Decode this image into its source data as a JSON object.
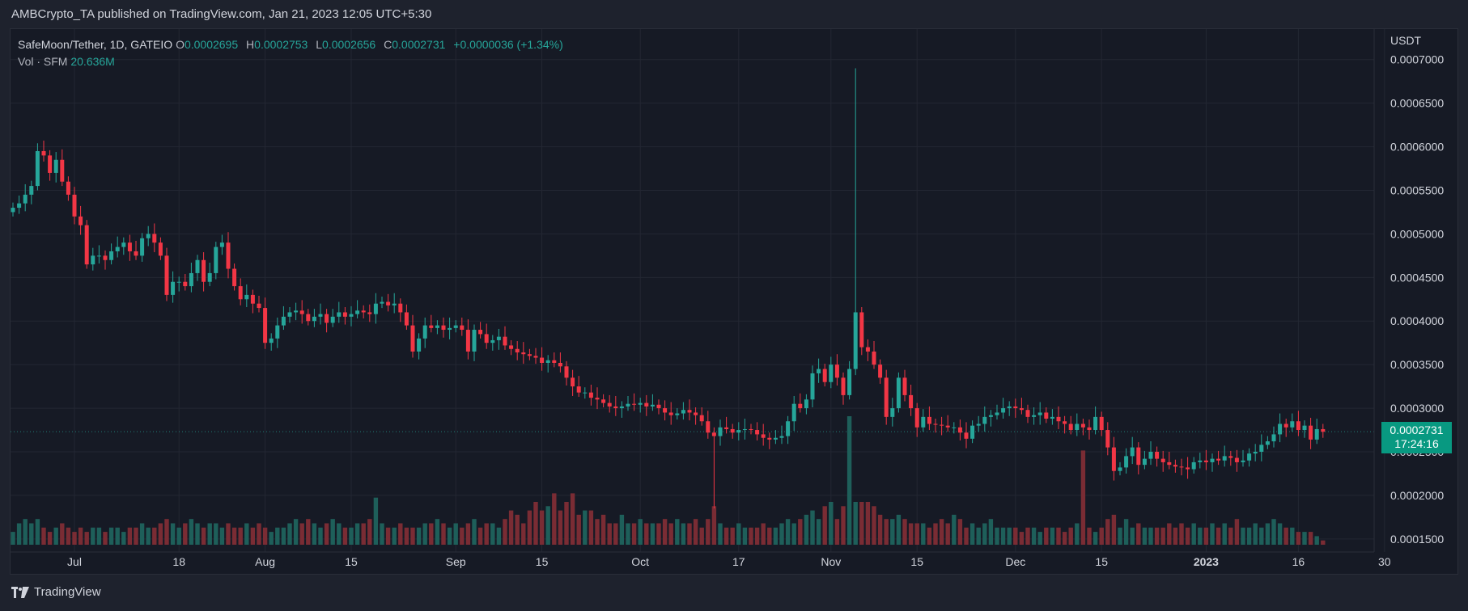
{
  "header": {
    "published": "AMBCrypto_TA published on TradingView.com, Jan 21, 2023 12:05 UTC+5:30"
  },
  "legend": {
    "symbol": "SafeMoon/Tether, 1D, GATEIO",
    "o_label": "O",
    "o_value": "0.0002695",
    "h_label": "H",
    "h_value": "0.0002753",
    "l_label": "L",
    "l_value": "0.0002656",
    "c_label": "C",
    "c_value": "0.0002731",
    "change": "+0.0000036 (+1.34%)",
    "vol_label": "Vol · SFM",
    "vol_value": "20.636M"
  },
  "price_axis": {
    "unit": "USDT"
  },
  "last_price": {
    "value": "0.0002731",
    "countdown": "17:24:16"
  },
  "footer": {
    "brand": "TradingView"
  },
  "colors": {
    "up": "#26a69a",
    "down": "#f23645",
    "vol_up": "#1e5f5a",
    "vol_down": "#7a2c34",
    "grid": "#232733",
    "text": "#d1d4dc"
  },
  "chart_data": {
    "type": "candlestick",
    "title": "SafeMoon/Tether, 1D, GATEIO",
    "ylabel": "USDT",
    "ylim": [
      0.000135,
      0.000735
    ],
    "y_ticks": [
      "0.0007000",
      "0.0006500",
      "0.0006000",
      "0.0005500",
      "0.0005000",
      "0.0004500",
      "0.0004000",
      "0.0003500",
      "0.0003000",
      "0.0002500",
      "0.0002000",
      "0.0001500"
    ],
    "x_ticks": [
      {
        "label": "Jul",
        "date": "2022-07-01"
      },
      {
        "label": "18",
        "date": "2022-07-18"
      },
      {
        "label": "Aug",
        "date": "2022-08-01"
      },
      {
        "label": "15",
        "date": "2022-08-15"
      },
      {
        "label": "Sep",
        "date": "2022-09-01"
      },
      {
        "label": "15",
        "date": "2022-09-15"
      },
      {
        "label": "Oct",
        "date": "2022-10-01"
      },
      {
        "label": "17",
        "date": "2022-10-17"
      },
      {
        "label": "Nov",
        "date": "2022-11-01"
      },
      {
        "label": "15",
        "date": "2022-11-15"
      },
      {
        "label": "Dec",
        "date": "2022-12-01"
      },
      {
        "label": "15",
        "date": "2022-12-15"
      },
      {
        "label": "2023",
        "date": "2023-01-01"
      },
      {
        "label": "16",
        "date": "2023-01-16"
      },
      {
        "label": "30",
        "date": "2023-01-30"
      }
    ],
    "start_date": "2022-06-21",
    "close": [
      0.00053,
      0.000535,
      0.000545,
      0.000555,
      0.000595,
      0.00059,
      0.00057,
      0.000585,
      0.00056,
      0.000545,
      0.00052,
      0.00051,
      0.000465,
      0.000475,
      0.000475,
      0.00047,
      0.00048,
      0.000485,
      0.00049,
      0.00048,
      0.000475,
      0.000495,
      0.0005,
      0.00049,
      0.000475,
      0.00043,
      0.000445,
      0.000445,
      0.00044,
      0.000455,
      0.00047,
      0.000445,
      0.000455,
      0.000485,
      0.00049,
      0.00046,
      0.00044,
      0.000425,
      0.00043,
      0.00042,
      0.000415,
      0.000375,
      0.00038,
      0.000395,
      0.000405,
      0.00041,
      0.000412,
      0.000408,
      0.0004,
      0.000405,
      0.000408,
      0.000398,
      0.000405,
      0.00041,
      0.000405,
      0.000408,
      0.000412,
      0.00041,
      0.000408,
      0.00042,
      0.000422,
      0.000418,
      0.00042,
      0.00041,
      0.000395,
      0.000365,
      0.00038,
      0.000395,
      0.000392,
      0.000395,
      0.00039,
      0.000392,
      0.000395,
      0.00039,
      0.000365,
      0.00039,
      0.000385,
      0.000375,
      0.000378,
      0.000382,
      0.000372,
      0.000368,
      0.000364,
      0.000362,
      0.00036,
      0.000358,
      0.000352,
      0.000355,
      0.000352,
      0.000348,
      0.000335,
      0.000325,
      0.000318,
      0.000318,
      0.000312,
      0.00031,
      0.000306,
      0.000302,
      0.0003,
      0.000302,
      0.000305,
      0.000304,
      0.000306,
      0.000302,
      0.000304,
      0.0003,
      0.000295,
      0.000292,
      0.000294,
      0.000298,
      0.000295,
      0.000292,
      0.000285,
      0.000272,
      0.000268,
      0.000278,
      0.000276,
      0.000272,
      0.000275,
      0.000276,
      0.000275,
      0.00027,
      0.000266,
      0.000264,
      0.000266,
      0.000268,
      0.000285,
      0.000305,
      0.0003,
      0.00031,
      0.00034,
      0.000345,
      0.00033,
      0.00035,
      0.000335,
      0.000315,
      0.000345,
      0.00041,
      0.00037,
      0.000365,
      0.00035,
      0.000335,
      0.00029,
      0.0003,
      0.000335,
      0.000315,
      0.0003,
      0.000278,
      0.00029,
      0.000282,
      0.000281,
      0.00028,
      0.000278,
      0.000278,
      0.000272,
      0.000265,
      0.00028,
      0.000282,
      0.00029,
      0.000292,
      0.000295,
      0.0003,
      0.000302,
      0.0003,
      0.000298,
      0.00029,
      0.000292,
      0.000295,
      0.000288,
      0.00029,
      0.000285,
      0.000282,
      0.000275,
      0.000282,
      0.000278,
      0.000275,
      0.00029,
      0.000275,
      0.000255,
      0.000228,
      0.000232,
      0.000245,
      0.000255,
      0.000235,
      0.000242,
      0.00025,
      0.000242,
      0.000238,
      0.000235,
      0.000233,
      0.000232,
      0.00023,
      0.000238,
      0.00024,
      0.000238,
      0.000242,
      0.00024,
      0.000245,
      0.000243,
      0.000238,
      0.00024,
      0.000248,
      0.00025,
      0.000258,
      0.000262,
      0.00027,
      0.000282,
      0.000278,
      0.000285,
      0.000275,
      0.00028,
      0.000264,
      0.000276,
      0.000273
    ],
    "volume_shown_by_bar_height": [
      3,
      5,
      6,
      5,
      6,
      4,
      3,
      4,
      5,
      4,
      3,
      4,
      3,
      4,
      4,
      3,
      4,
      4,
      3,
      4,
      4,
      5,
      4,
      4,
      5,
      6,
      5,
      4,
      5,
      6,
      5,
      4,
      5,
      5,
      4,
      5,
      4,
      4,
      5,
      4,
      5,
      4,
      3,
      4,
      4,
      5,
      6,
      5,
      6,
      5,
      4,
      5,
      6,
      5,
      4,
      4,
      5,
      5,
      6,
      11,
      5,
      4,
      4,
      5,
      4,
      4,
      4,
      5,
      5,
      6,
      5,
      4,
      5,
      4,
      5,
      6,
      4,
      5,
      5,
      4,
      6,
      8,
      7,
      5,
      8,
      10,
      8,
      9,
      12,
      8,
      10,
      12,
      7,
      8,
      8,
      6,
      7,
      5,
      5,
      7,
      5,
      5,
      6,
      5,
      5,
      5,
      6,
      5,
      6,
      5,
      5,
      6,
      4,
      6,
      9,
      5,
      4,
      4,
      5,
      4,
      4,
      4,
      5,
      4,
      4,
      5,
      6,
      5,
      6,
      7,
      8,
      6,
      9,
      10,
      6,
      9,
      30,
      10,
      10,
      10,
      9,
      7,
      6,
      6,
      7,
      6,
      5,
      5,
      5,
      4,
      5,
      6,
      5,
      7,
      6,
      4,
      5,
      4,
      5,
      6,
      4,
      4,
      4,
      4,
      3,
      4,
      4,
      3,
      4,
      4,
      4,
      3,
      4,
      5,
      22,
      4,
      3,
      4,
      6,
      7,
      4,
      6,
      4,
      5,
      4,
      4,
      4,
      4,
      5,
      4,
      5,
      4,
      5,
      4,
      4,
      5,
      4,
      5,
      4,
      6,
      4,
      4,
      5,
      4,
      5,
      6,
      5,
      4,
      4,
      3,
      3,
      3,
      2,
      1
    ]
  }
}
